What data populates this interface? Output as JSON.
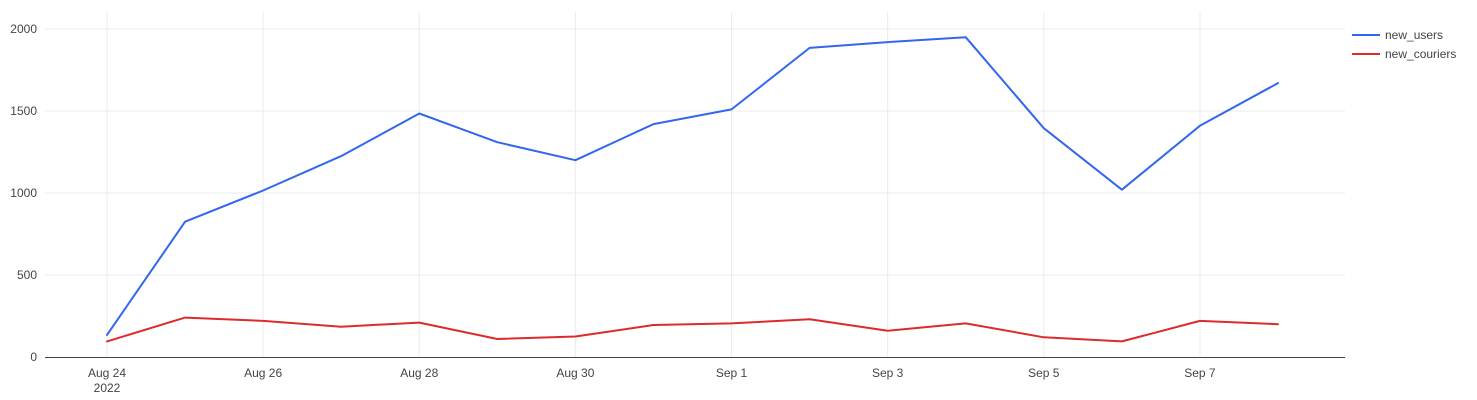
{
  "chart_data": {
    "type": "line",
    "x_type": "date",
    "x": [
      "2022-08-24",
      "2022-08-25",
      "2022-08-26",
      "2022-08-27",
      "2022-08-28",
      "2022-08-29",
      "2022-08-30",
      "2022-08-31",
      "2022-09-01",
      "2022-09-02",
      "2022-09-03",
      "2022-09-04",
      "2022-09-05",
      "2022-09-06",
      "2022-09-07",
      "2022-09-08"
    ],
    "series": [
      {
        "name": "new_users",
        "color": "#3366ee",
        "values": [
          135,
          825,
          1015,
          1225,
          1485,
          1310,
          1200,
          1420,
          1510,
          1885,
          1920,
          1950,
          1395,
          1020,
          1410,
          1670
        ]
      },
      {
        "name": "new_couriers",
        "color": "#dd2a2a",
        "values": [
          95,
          240,
          220,
          185,
          210,
          110,
          125,
          195,
          205,
          230,
          160,
          205,
          120,
          95,
          220,
          200
        ]
      }
    ],
    "x_ticks": [
      {
        "date": "2022-08-24",
        "label": "Aug 24",
        "sublabel": "2022"
      },
      {
        "date": "2022-08-26",
        "label": "Aug 26"
      },
      {
        "date": "2022-08-28",
        "label": "Aug 28"
      },
      {
        "date": "2022-08-30",
        "label": "Aug 30"
      },
      {
        "date": "2022-09-01",
        "label": "Sep 1"
      },
      {
        "date": "2022-09-03",
        "label": "Sep 3"
      },
      {
        "date": "2022-09-05",
        "label": "Sep 5"
      },
      {
        "date": "2022-09-07",
        "label": "Sep 7"
      }
    ],
    "y_ticks": [
      0,
      500,
      1000,
      1500,
      2000
    ],
    "ylim": [
      0,
      2000
    ],
    "xlim": [
      "2022-08-23",
      "2022-09-09"
    ],
    "grid": true,
    "legend_position": "top-right",
    "title": "",
    "xlabel": "",
    "ylabel": ""
  }
}
